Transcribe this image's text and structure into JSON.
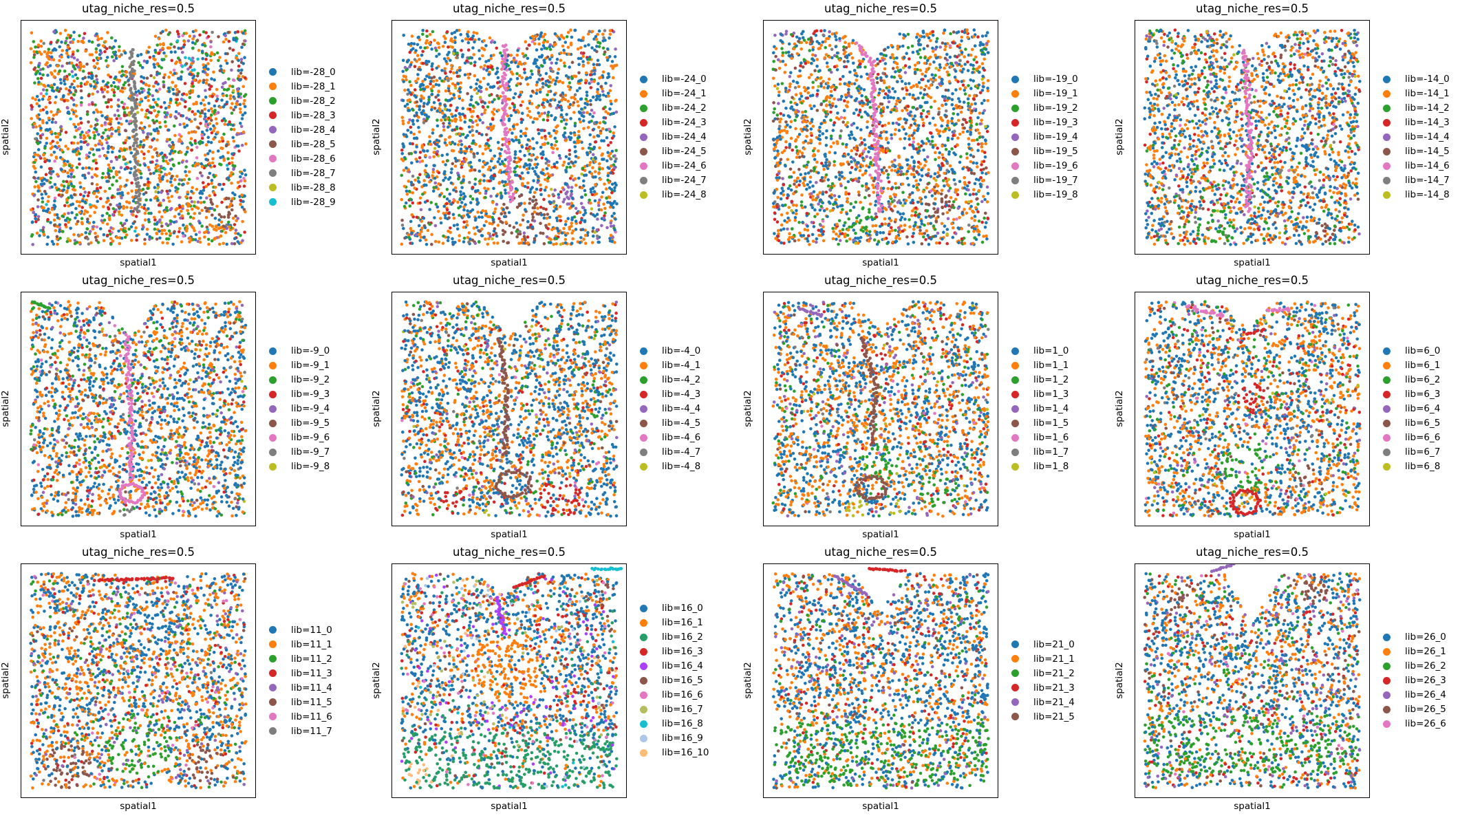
{
  "chart_data": [
    {
      "type": "scatter",
      "title": "utag_niche_res=0.5",
      "xlabel": "spatial1",
      "ylabel": "spatial2",
      "grid": false,
      "legend_position": "right",
      "legend": [
        "lib=-28_0",
        "lib=-28_1",
        "lib=-28_2",
        "lib=-28_3",
        "lib=-28_4",
        "lib=-28_5",
        "lib=-28_6",
        "lib=-28_7",
        "lib=-28_8",
        "lib=-28_9"
      ],
      "colors": [
        "#1f77b4",
        "#ff7f0e",
        "#2ca02c",
        "#d62728",
        "#9467bd",
        "#8c564b",
        "#e377c2",
        "#7f7f7f",
        "#bcbd22",
        "#17becf"
      ],
      "weights": [
        26,
        30,
        14,
        9,
        8,
        5,
        2,
        1,
        1,
        1
      ],
      "notch": {
        "x": 0.48,
        "depth": 0.12
      },
      "structures": [
        {
          "cat": 7,
          "kind": "line",
          "pts": [
            [
              0.47,
              0.12
            ],
            [
              0.48,
              0.4
            ],
            [
              0.5,
              0.82
            ]
          ],
          "w": 0.02
        },
        {
          "cat": 9,
          "kind": "blob",
          "x": 0.72,
          "y": 0.18,
          "r": 0.04
        },
        {
          "cat": 5,
          "kind": "blob",
          "x": 0.85,
          "y": 0.8,
          "r": 0.06
        }
      ]
    },
    {
      "type": "scatter",
      "title": "utag_niche_res=0.5",
      "xlabel": "spatial1",
      "ylabel": "spatial2",
      "grid": false,
      "legend_position": "right",
      "legend": [
        "lib=-24_0",
        "lib=-24_1",
        "lib=-24_2",
        "lib=-24_3",
        "lib=-24_4",
        "lib=-24_5",
        "lib=-24_6",
        "lib=-24_7",
        "lib=-24_8"
      ],
      "colors": [
        "#1f77b4",
        "#ff7f0e",
        "#2ca02c",
        "#d62728",
        "#9467bd",
        "#8c564b",
        "#e377c2",
        "#7f7f7f",
        "#bcbd22"
      ],
      "weights": [
        36,
        32,
        7,
        6,
        4,
        3,
        1,
        2,
        1
      ],
      "notch": {
        "x": 0.5,
        "depth": 0.1
      },
      "structures": [
        {
          "cat": 6,
          "kind": "line",
          "pts": [
            [
              0.48,
              0.1
            ],
            [
              0.48,
              0.4
            ],
            [
              0.51,
              0.78
            ]
          ],
          "w": 0.022
        },
        {
          "cat": 5,
          "kind": "blob",
          "x": 0.55,
          "y": 0.86,
          "r": 0.12
        },
        {
          "cat": 4,
          "kind": "blob",
          "x": 0.78,
          "y": 0.75,
          "r": 0.07
        },
        {
          "cat": 4,
          "kind": "blob",
          "x": 0.92,
          "y": 0.88,
          "r": 0.06
        }
      ]
    },
    {
      "type": "scatter",
      "title": "utag_niche_res=0.5",
      "xlabel": "spatial1",
      "ylabel": "spatial2",
      "grid": false,
      "legend_position": "right",
      "legend": [
        "lib=-19_0",
        "lib=-19_1",
        "lib=-19_2",
        "lib=-19_3",
        "lib=-19_4",
        "lib=-19_5",
        "lib=-19_6",
        "lib=-19_7",
        "lib=-19_8"
      ],
      "colors": [
        "#1f77b4",
        "#ff7f0e",
        "#2ca02c",
        "#d62728",
        "#9467bd",
        "#8c564b",
        "#e377c2",
        "#7f7f7f",
        "#bcbd22"
      ],
      "weights": [
        36,
        32,
        8,
        7,
        4,
        6,
        1,
        2,
        1
      ],
      "notch": {
        "x": 0.47,
        "depth": 0.12
      },
      "structures": [
        {
          "cat": 6,
          "kind": "line",
          "pts": [
            [
              0.4,
              0.1
            ],
            [
              0.46,
              0.18
            ],
            [
              0.48,
              0.5
            ],
            [
              0.5,
              0.82
            ]
          ],
          "w": 0.02
        },
        {
          "cat": 2,
          "kind": "blob",
          "x": 0.4,
          "y": 0.85,
          "r": 0.08
        },
        {
          "cat": 5,
          "kind": "blob",
          "x": 0.75,
          "y": 0.8,
          "r": 0.07
        },
        {
          "cat": 4,
          "kind": "blob",
          "x": 0.07,
          "y": 0.04,
          "r": 0.04
        }
      ]
    },
    {
      "type": "scatter",
      "title": "utag_niche_res=0.5",
      "xlabel": "spatial1",
      "ylabel": "spatial2",
      "grid": false,
      "legend_position": "right",
      "legend": [
        "lib=-14_0",
        "lib=-14_1",
        "lib=-14_2",
        "lib=-14_3",
        "lib=-14_4",
        "lib=-14_5",
        "lib=-14_6",
        "lib=-14_7",
        "lib=-14_8"
      ],
      "colors": [
        "#1f77b4",
        "#ff7f0e",
        "#2ca02c",
        "#d62728",
        "#9467bd",
        "#8c564b",
        "#e377c2",
        "#7f7f7f",
        "#bcbd22"
      ],
      "weights": [
        36,
        32,
        9,
        7,
        5,
        4,
        1,
        3,
        1
      ],
      "notch": {
        "x": 0.5,
        "depth": 0.1
      },
      "structures": [
        {
          "cat": 6,
          "kind": "line",
          "pts": [
            [
              0.47,
              0.13
            ],
            [
              0.49,
              0.5
            ],
            [
              0.48,
              0.82
            ]
          ],
          "w": 0.024
        },
        {
          "cat": 2,
          "kind": "blob",
          "x": 0.35,
          "y": 0.88,
          "r": 0.09
        },
        {
          "cat": 5,
          "kind": "blob",
          "x": 0.8,
          "y": 0.9,
          "r": 0.05
        }
      ]
    },
    {
      "type": "scatter",
      "title": "utag_niche_res=0.5",
      "xlabel": "spatial1",
      "ylabel": "spatial2",
      "grid": false,
      "legend_position": "right",
      "legend": [
        "lib=-9_0",
        "lib=-9_1",
        "lib=-9_2",
        "lib=-9_3",
        "lib=-9_4",
        "lib=-9_5",
        "lib=-9_6",
        "lib=-9_7",
        "lib=-9_8"
      ],
      "colors": [
        "#1f77b4",
        "#ff7f0e",
        "#2ca02c",
        "#d62728",
        "#9467bd",
        "#8c564b",
        "#e377c2",
        "#7f7f7f",
        "#bcbd22"
      ],
      "weights": [
        38,
        32,
        9,
        6,
        5,
        3,
        1,
        1,
        1
      ],
      "notch": {
        "x": 0.46,
        "depth": 0.14
      },
      "structures": [
        {
          "cat": 6,
          "kind": "line",
          "pts": [
            [
              0.45,
              0.18
            ],
            [
              0.47,
              0.5
            ],
            [
              0.47,
              0.8
            ]
          ],
          "w": 0.022
        },
        {
          "cat": 6,
          "kind": "ring",
          "x": 0.47,
          "y": 0.86,
          "r": 0.05
        },
        {
          "cat": 7,
          "kind": "blob",
          "x": 0.45,
          "y": 0.95,
          "r": 0.04
        },
        {
          "cat": 2,
          "kind": "line",
          "pts": [
            [
              0.05,
              0.04
            ],
            [
              0.12,
              0.07
            ]
          ],
          "w": 0.01
        }
      ]
    },
    {
      "type": "scatter",
      "title": "utag_niche_res=0.5",
      "xlabel": "spatial1",
      "ylabel": "spatial2",
      "grid": false,
      "legend_position": "right",
      "legend": [
        "lib=-4_0",
        "lib=-4_1",
        "lib=-4_2",
        "lib=-4_3",
        "lib=-4_4",
        "lib=-4_5",
        "lib=-4_6",
        "lib=-4_7",
        "lib=-4_8"
      ],
      "colors": [
        "#1f77b4",
        "#ff7f0e",
        "#2ca02c",
        "#d62728",
        "#9467bd",
        "#8c564b",
        "#e377c2",
        "#7f7f7f",
        "#bcbd22"
      ],
      "weights": [
        38,
        32,
        8,
        5,
        4,
        2,
        1,
        1,
        1
      ],
      "notch": {
        "x": 0.5,
        "depth": 0.16
      },
      "structures": [
        {
          "cat": 5,
          "kind": "line",
          "pts": [
            [
              0.46,
              0.2
            ],
            [
              0.49,
              0.45
            ],
            [
              0.48,
              0.7
            ]
          ],
          "w": 0.02
        },
        {
          "cat": 5,
          "kind": "ring",
          "x": 0.52,
          "y": 0.82,
          "r": 0.07
        },
        {
          "cat": 3,
          "kind": "blob",
          "x": 0.25,
          "y": 0.9,
          "r": 0.07
        },
        {
          "cat": 3,
          "kind": "blob",
          "x": 0.72,
          "y": 0.88,
          "r": 0.09
        },
        {
          "cat": 8,
          "kind": "blob",
          "x": 0.42,
          "y": 0.95,
          "r": 0.04
        }
      ]
    },
    {
      "type": "scatter",
      "title": "utag_niche_res=0.5",
      "xlabel": "spatial1",
      "ylabel": "spatial2",
      "grid": false,
      "legend_position": "right",
      "legend": [
        "lib=1_0",
        "lib=1_1",
        "lib=1_2",
        "lib=1_3",
        "lib=1_4",
        "lib=1_5",
        "lib=1_6",
        "lib=1_7",
        "lib=1_8"
      ],
      "colors": [
        "#1f77b4",
        "#ff7f0e",
        "#2ca02c",
        "#d62728",
        "#9467bd",
        "#8c564b",
        "#e377c2",
        "#7f7f7f",
        "#bcbd22"
      ],
      "weights": [
        38,
        32,
        8,
        6,
        5,
        2,
        1,
        1,
        1
      ],
      "notch": {
        "x": 0.5,
        "depth": 0.12
      },
      "structures": [
        {
          "cat": 5,
          "kind": "line",
          "pts": [
            [
              0.42,
              0.2
            ],
            [
              0.48,
              0.4
            ],
            [
              0.46,
              0.65
            ]
          ],
          "w": 0.022
        },
        {
          "cat": 5,
          "kind": "ring",
          "x": 0.46,
          "y": 0.84,
          "r": 0.06
        },
        {
          "cat": 2,
          "kind": "blob",
          "x": 0.5,
          "y": 0.73,
          "r": 0.08
        },
        {
          "cat": 2,
          "kind": "blob",
          "x": 0.75,
          "y": 0.85,
          "r": 0.08
        },
        {
          "cat": 8,
          "kind": "blob",
          "x": 0.4,
          "y": 0.93,
          "r": 0.05
        },
        {
          "cat": 8,
          "kind": "blob",
          "x": 0.58,
          "y": 0.93,
          "r": 0.04
        },
        {
          "cat": 4,
          "kind": "line",
          "pts": [
            [
              0.15,
              0.07
            ],
            [
              0.25,
              0.1
            ]
          ],
          "w": 0.012
        }
      ]
    },
    {
      "type": "scatter",
      "title": "utag_niche_res=0.5",
      "xlabel": "spatial1",
      "ylabel": "spatial2",
      "grid": false,
      "legend_position": "right",
      "legend": [
        "lib=6_0",
        "lib=6_1",
        "lib=6_2",
        "lib=6_3",
        "lib=6_4",
        "lib=6_5",
        "lib=6_6",
        "lib=6_7",
        "lib=6_8"
      ],
      "colors": [
        "#1f77b4",
        "#ff7f0e",
        "#2ca02c",
        "#d62728",
        "#9467bd",
        "#8c564b",
        "#e377c2",
        "#7f7f7f",
        "#bcbd22"
      ],
      "weights": [
        38,
        32,
        8,
        7,
        4,
        3,
        1,
        2,
        1
      ],
      "notch": {
        "x": 0.48,
        "depth": 0.12
      },
      "structures": [
        {
          "cat": 6,
          "kind": "line",
          "pts": [
            [
              0.22,
              0.06
            ],
            [
              0.38,
              0.1
            ]
          ],
          "w": 0.03
        },
        {
          "cat": 6,
          "kind": "line",
          "pts": [
            [
              0.56,
              0.08
            ],
            [
              0.66,
              0.07
            ]
          ],
          "w": 0.025
        },
        {
          "cat": 3,
          "kind": "line",
          "pts": [
            [
              0.48,
              0.18
            ],
            [
              0.55,
              0.16
            ]
          ],
          "w": 0.015
        },
        {
          "cat": 3,
          "kind": "blob",
          "x": 0.5,
          "y": 0.45,
          "r": 0.07
        },
        {
          "cat": 3,
          "kind": "ring",
          "x": 0.47,
          "y": 0.9,
          "r": 0.06
        },
        {
          "cat": 2,
          "kind": "blob",
          "x": 0.48,
          "y": 0.75,
          "r": 0.12
        },
        {
          "cat": 5,
          "kind": "blob",
          "x": 0.72,
          "y": 0.78,
          "r": 0.05
        }
      ]
    },
    {
      "type": "scatter",
      "title": "utag_niche_res=0.5",
      "xlabel": "spatial1",
      "ylabel": "spatial2",
      "grid": false,
      "legend_position": "right",
      "legend": [
        "lib=11_0",
        "lib=11_1",
        "lib=11_2",
        "lib=11_3",
        "lib=11_4",
        "lib=11_5",
        "lib=11_6",
        "lib=11_7"
      ],
      "colors": [
        "#1f77b4",
        "#ff7f0e",
        "#2ca02c",
        "#d62728",
        "#9467bd",
        "#8c564b",
        "#e377c2",
        "#7f7f7f"
      ],
      "weights": [
        34,
        36,
        8,
        6,
        6,
        2,
        2,
        1
      ],
      "notch": {
        "x": 0.5,
        "depth": 0.03
      },
      "structures": [
        {
          "cat": 0,
          "kind": "blob",
          "x": 0.55,
          "y": 0.3,
          "r": 0.1
        },
        {
          "cat": 2,
          "kind": "blob",
          "x": 0.5,
          "y": 0.78,
          "r": 0.14
        },
        {
          "cat": 5,
          "kind": "blob",
          "x": 0.2,
          "y": 0.87,
          "r": 0.1
        },
        {
          "cat": 5,
          "kind": "blob",
          "x": 0.78,
          "y": 0.86,
          "r": 0.09
        },
        {
          "cat": 3,
          "kind": "line",
          "pts": [
            [
              0.32,
              0.07
            ],
            [
              0.65,
              0.06
            ]
          ],
          "w": 0.015
        }
      ]
    },
    {
      "type": "scatter",
      "title": "utag_niche_res=0.5",
      "xlabel": "spatial1",
      "ylabel": "spatial2",
      "grid": false,
      "legend_position": "right",
      "legend": [
        "lib=16_0",
        "lib=16_1",
        "lib=16_2",
        "lib=16_3",
        "lib=16_4",
        "lib=16_5",
        "lib=16_6",
        "lib=16_7",
        "lib=16_8",
        "lib=16_9",
        "lib=16_10"
      ],
      "colors": [
        "#1f77b4",
        "#ff7f0e",
        "#279e68",
        "#d62728",
        "#aa40fc",
        "#8c564b",
        "#e377c2",
        "#b5bd61",
        "#17becf",
        "#aec7e8",
        "#ffbb78"
      ],
      "weights": [
        38,
        18,
        6,
        7,
        5,
        5,
        3,
        3,
        1,
        1,
        1
      ],
      "notch": {
        "x": 0.48,
        "depth": 0.1
      },
      "structures": [
        {
          "cat": 2,
          "kind": "band",
          "y0": 0.72,
          "y1": 0.97,
          "density": 0.6
        },
        {
          "cat": 1,
          "kind": "blob",
          "x": 0.48,
          "y": 0.45,
          "r": 0.16
        },
        {
          "cat": 10,
          "kind": "blob",
          "x": 0.12,
          "y": 0.9,
          "r": 0.06
        },
        {
          "cat": 8,
          "kind": "line",
          "pts": [
            [
              0.86,
              0.02
            ],
            [
              0.98,
              0.02
            ]
          ],
          "w": 0.015
        },
        {
          "cat": 8,
          "kind": "blob",
          "x": 0.75,
          "y": 0.96,
          "r": 0.03
        },
        {
          "cat": 3,
          "kind": "line",
          "pts": [
            [
              0.52,
              0.1
            ],
            [
              0.65,
              0.05
            ]
          ],
          "w": 0.01
        },
        {
          "cat": 4,
          "kind": "line",
          "pts": [
            [
              0.45,
              0.14
            ],
            [
              0.48,
              0.3
            ]
          ],
          "w": 0.015
        }
      ]
    },
    {
      "type": "scatter",
      "title": "utag_niche_res=0.5",
      "xlabel": "spatial1",
      "ylabel": "spatial2",
      "grid": false,
      "legend_position": "right",
      "legend": [
        "lib=21_0",
        "lib=21_1",
        "lib=21_2",
        "lib=21_3",
        "lib=21_4",
        "lib=21_5"
      ],
      "colors": [
        "#1f77b4",
        "#ff7f0e",
        "#2ca02c",
        "#d62728",
        "#9467bd",
        "#8c564b"
      ],
      "weights": [
        44,
        28,
        6,
        8,
        6,
        3
      ],
      "notch": {
        "x": 0.5,
        "depth": 0.16
      },
      "structures": [
        {
          "cat": 2,
          "kind": "band",
          "y0": 0.68,
          "y1": 0.95,
          "density": 0.45
        },
        {
          "cat": 3,
          "kind": "line",
          "pts": [
            [
              0.45,
              0.02
            ],
            [
              0.6,
              0.03
            ]
          ],
          "w": 0.012
        },
        {
          "cat": 4,
          "kind": "line",
          "pts": [
            [
              0.3,
              0.05
            ],
            [
              0.44,
              0.13
            ]
          ],
          "w": 0.01
        }
      ]
    },
    {
      "type": "scatter",
      "title": "utag_niche_res=0.5",
      "xlabel": "spatial1",
      "ylabel": "spatial2",
      "grid": false,
      "legend_position": "right",
      "legend": [
        "lib=26_0",
        "lib=26_1",
        "lib=26_2",
        "lib=26_3",
        "lib=26_4",
        "lib=26_5",
        "lib=26_6"
      ],
      "colors": [
        "#1f77b4",
        "#ff7f0e",
        "#2ca02c",
        "#d62728",
        "#9467bd",
        "#8c564b",
        "#e377c2"
      ],
      "weights": [
        42,
        24,
        8,
        9,
        7,
        6,
        2
      ],
      "notch": {
        "x": 0.5,
        "depth": 0.22
      },
      "structures": [
        {
          "cat": 2,
          "kind": "band",
          "y0": 0.64,
          "y1": 0.9,
          "density": 0.45
        },
        {
          "cat": 5,
          "kind": "blob",
          "x": 0.75,
          "y": 0.12,
          "r": 0.07
        },
        {
          "cat": 5,
          "kind": "blob",
          "x": 0.2,
          "y": 0.14,
          "r": 0.06
        },
        {
          "cat": 4,
          "kind": "line",
          "pts": [
            [
              0.33,
              0.03
            ],
            [
              0.42,
              0.0
            ]
          ],
          "w": 0.012
        }
      ]
    }
  ]
}
